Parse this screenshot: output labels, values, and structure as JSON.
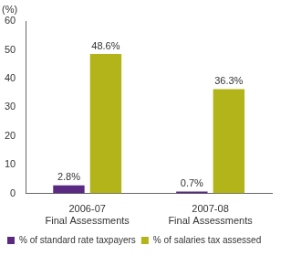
{
  "chart_data": {
    "type": "bar",
    "ylabel": "(%)",
    "categories": [
      "2006-07 Final Assessments",
      "2007-08 Final Assessments"
    ],
    "series": [
      {
        "name": "% of standard rate taxpayers",
        "color": "#5a2a82",
        "values": [
          2.8,
          0.7
        ],
        "value_labels": [
          "2.8%",
          "0.7%"
        ]
      },
      {
        "name": "% of salaries tax assessed",
        "color": "#b3b31a",
        "values": [
          48.6,
          36.3
        ],
        "value_labels": [
          "48.6%",
          "36.3%"
        ]
      }
    ],
    "ylim": [
      0,
      60
    ],
    "yticks": [
      0,
      10,
      20,
      30,
      40,
      50,
      60
    ],
    "grid": false,
    "legend": "bottom",
    "data_labels": true
  }
}
